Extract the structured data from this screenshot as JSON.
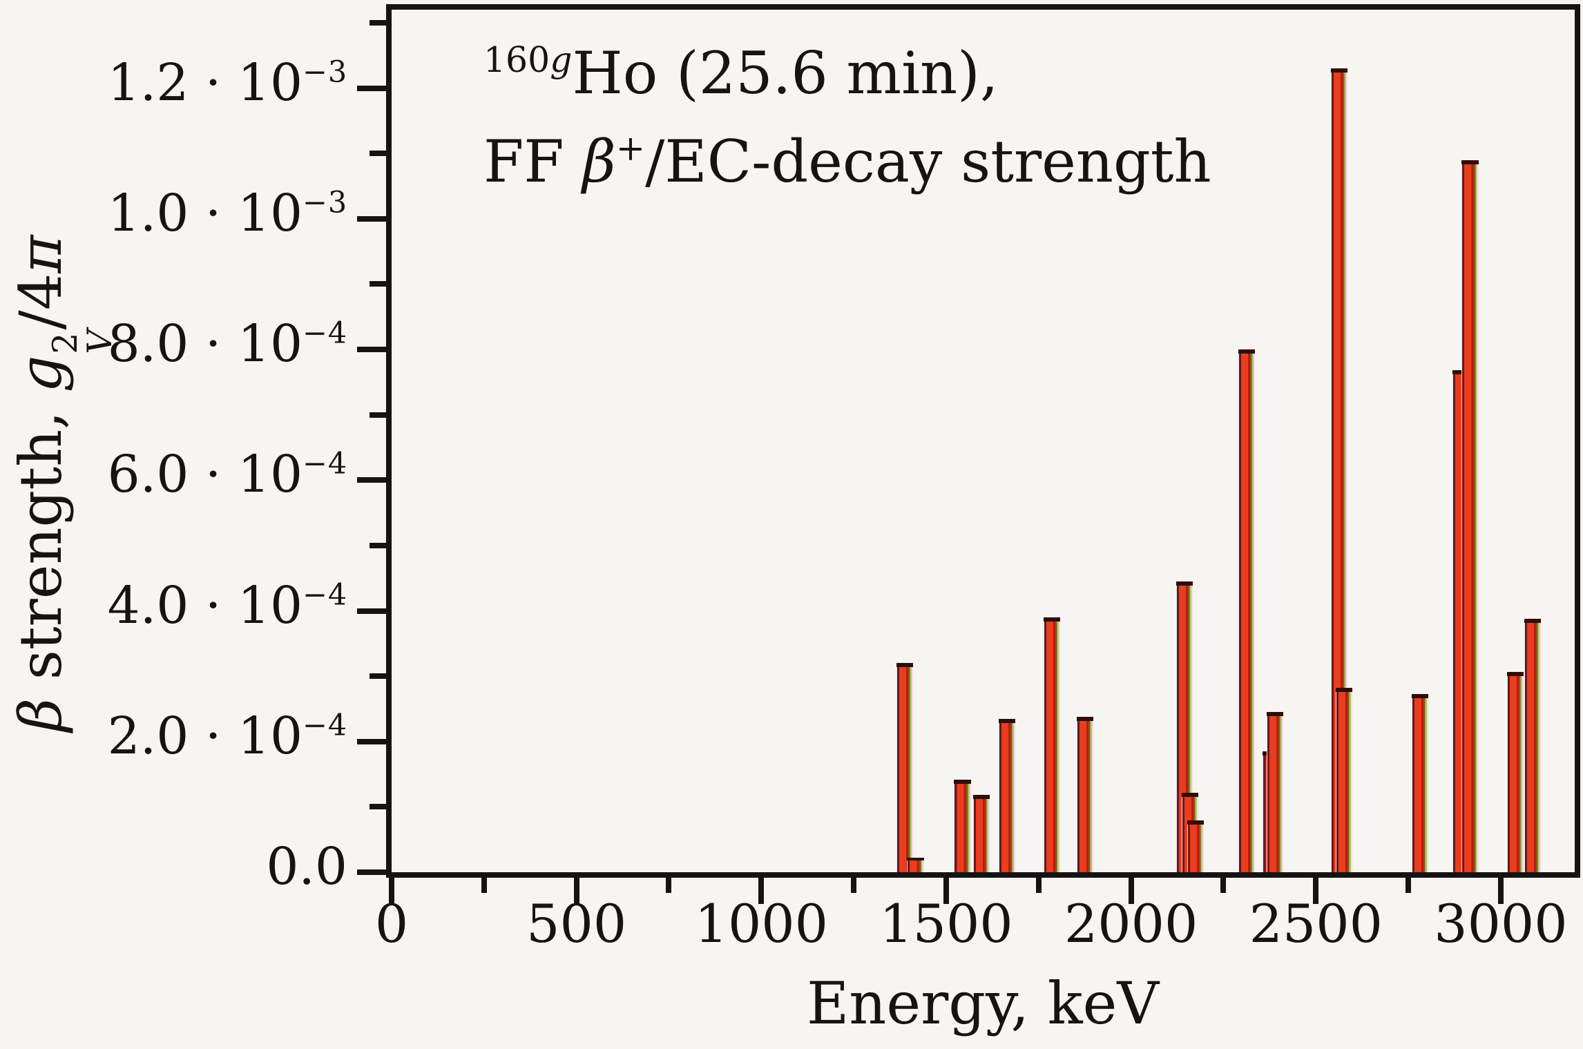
{
  "figure": {
    "annotation": {
      "line1_sup_num": "160",
      "line1_sup_g": "g",
      "line1_text": "Ho (25.6 min),",
      "line2_pre": "FF ",
      "line2_beta": "β",
      "line2_sup": "+",
      "line2_rest": "/EC-decay strength"
    },
    "x_axis": {
      "label": "Energy, keV"
    },
    "y_axis": {
      "label_beta": "β",
      "label_pre_rest": " strength, ",
      "label_g": "g",
      "label_g_sup": "2",
      "label_g_sub": "V",
      "label_slash": "/4",
      "label_pi": "π"
    }
  },
  "chart_data": {
    "type": "bar",
    "title": "160gHo (25.6 min), FF β+/EC-decay strength",
    "xlabel": "Energy, keV",
    "ylabel": "β strength, g_V^2/4π",
    "xlim": [
      0,
      3200
    ],
    "ylim": [
      0,
      0.00132
    ],
    "grid": "off",
    "legend": "none",
    "x_major_ticks": [
      0,
      500,
      1000,
      1500,
      2000,
      2500,
      3000
    ],
    "x_major_tick_labels": [
      "0",
      "500",
      "1000",
      "1500",
      "2000",
      "2500",
      "3000"
    ],
    "x_minor_ticks": [
      250,
      750,
      1250,
      1750,
      2250,
      2750
    ],
    "y_major_ticks": [
      0,
      0.0002,
      0.0004,
      0.0006,
      0.0008,
      0.001,
      0.0012
    ],
    "y_major_tick_labels": [
      {
        "m": "0.0",
        "e": ""
      },
      {
        "m": "2.0 · 10",
        "e": "−4"
      },
      {
        "m": "4.0 · 10",
        "e": "−4"
      },
      {
        "m": "6.0 · 10",
        "e": "−4"
      },
      {
        "m": "8.0 · 10",
        "e": "−4"
      },
      {
        "m": "1.0 · 10",
        "e": "−3"
      },
      {
        "m": "1.2 · 10",
        "e": "−3"
      }
    ],
    "y_minor_ticks": [
      0.0001,
      0.0003,
      0.0005,
      0.0007,
      0.0009,
      0.0011,
      0.0013
    ],
    "bar_width_kev": 45,
    "bars": [
      {
        "energy": 1388,
        "strength": 0.00032
      },
      {
        "energy": 1417,
        "strength": 2.2e-05
      },
      {
        "energy": 1544,
        "strength": 0.000142
      },
      {
        "energy": 1596,
        "strength": 0.000118
      },
      {
        "energy": 1665,
        "strength": 0.000235
      },
      {
        "energy": 1786,
        "strength": 0.00039
      },
      {
        "energy": 1876,
        "strength": 0.000238
      },
      {
        "energy": 2144,
        "strength": 0.000445
      },
      {
        "energy": 2159,
        "strength": 0.000122
      },
      {
        "energy": 2174,
        "strength": 7.9e-05
      },
      {
        "energy": 2312,
        "strength": 0.0008
      },
      {
        "energy": 2379,
        "strength": 0.000185
      },
      {
        "energy": 2390,
        "strength": 0.000245
      },
      {
        "energy": 2563,
        "strength": 0.00123
      },
      {
        "energy": 2576,
        "strength": 0.000282
      },
      {
        "energy": 2782,
        "strength": 0.000273
      },
      {
        "energy": 2891,
        "strength": 0.000768
      },
      {
        "energy": 2917,
        "strength": 0.00109
      },
      {
        "energy": 3039,
        "strength": 0.000307
      },
      {
        "energy": 3086,
        "strength": 0.000388
      }
    ]
  },
  "colors": {
    "background": "#f6f5f2",
    "axis": "#161413",
    "text": "#161413",
    "bar_fill": "#e93d1e",
    "bar_edge_dark": "#7a120c",
    "bar_edge_olive": "#7c5f12",
    "bar_fringe_green": "#a8ca80",
    "bar_fringe_pink": "#f7d9ec"
  }
}
